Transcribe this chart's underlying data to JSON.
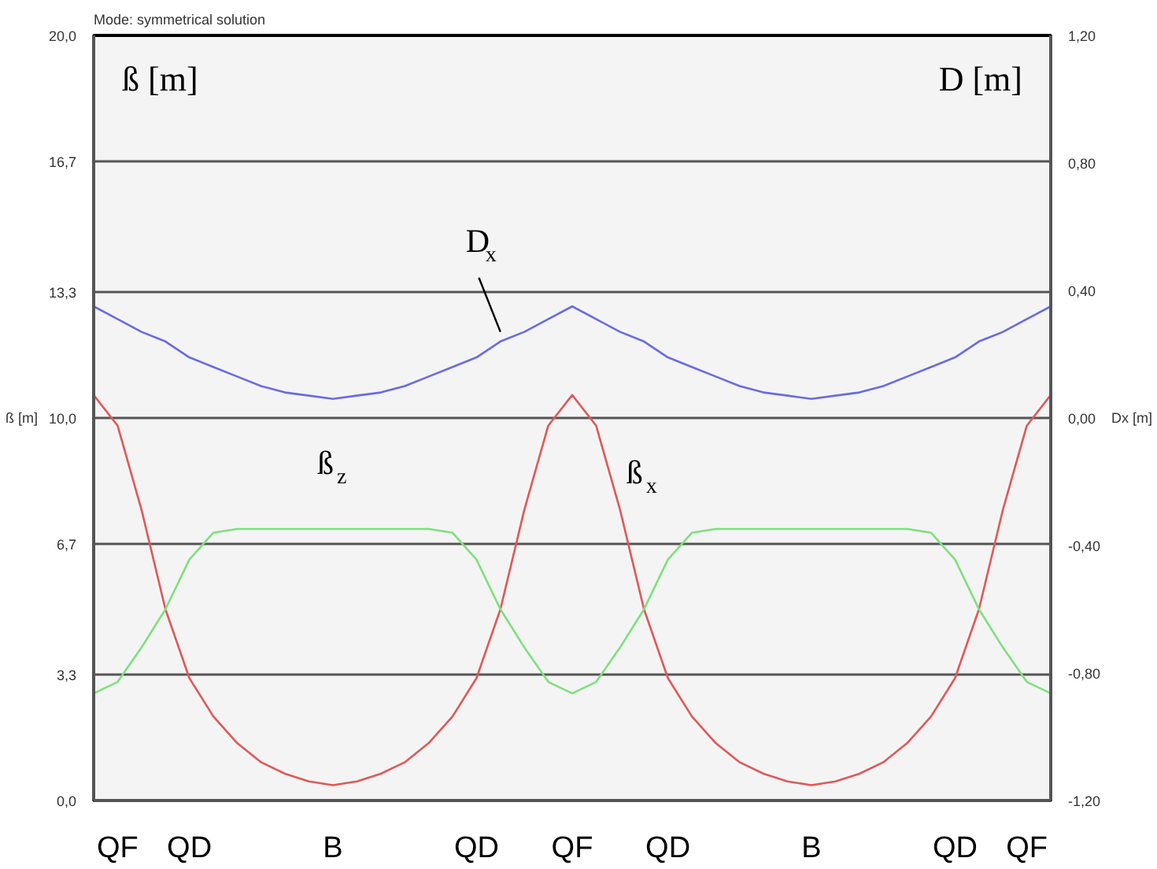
{
  "chart_data": {
    "type": "line",
    "title": "Mode: symmetrical solution",
    "ylabel": "ß [m]",
    "y2label": "Dx [m]",
    "annotations": [
      "ß [m]",
      "D [m]"
    ],
    "categories": [
      null,
      "QF",
      null,
      null,
      "QD",
      null,
      null,
      null,
      null,
      null,
      "B",
      null,
      null,
      null,
      null,
      null,
      "QD",
      null,
      null,
      null,
      "QF",
      null,
      null,
      null,
      "QD",
      null,
      null,
      null,
      null,
      null,
      "B",
      null,
      null,
      null,
      null,
      null,
      "QD",
      null,
      null,
      "QF",
      null
    ],
    "grid": "y",
    "ylim": [
      0,
      20
    ],
    "yticks": [
      {
        "value": 0,
        "label": "0,0"
      },
      {
        "value": 3.3,
        "label": "3,3"
      },
      {
        "value": 6.7,
        "label": "6,7"
      },
      {
        "value": 10,
        "label": "10,0"
      },
      {
        "value": 13.3,
        "label": "13,3"
      },
      {
        "value": 16.7,
        "label": "16,7"
      },
      {
        "value": 20,
        "label": "20,0"
      }
    ],
    "y2lim": [
      -1.2,
      1.2
    ],
    "y2ticks": [
      {
        "value": -1.2,
        "label": "-1,20"
      },
      {
        "value": -0.8,
        "label": "-0,80"
      },
      {
        "value": -0.4,
        "label": "-0,40"
      },
      {
        "value": 0,
        "label": "0,00"
      },
      {
        "value": 0.4,
        "label": "0,40"
      },
      {
        "value": 0.8,
        "label": "0,80"
      },
      {
        "value": 1.2,
        "label": "1,20"
      }
    ],
    "series": [
      {
        "name": "D$_{x}$",
        "color": "#6a6ae6",
        "axis": "y2",
        "values": [
          0.35,
          0.31,
          0.27,
          0.24,
          0.19,
          0.16,
          0.13,
          0.1,
          0.08,
          0.07,
          0.06,
          0.07,
          0.08,
          0.1,
          0.13,
          0.16,
          0.19,
          0.24,
          0.27,
          0.31,
          0.35,
          0.31,
          0.27,
          0.24,
          0.19,
          0.16,
          0.13,
          0.1,
          0.08,
          0.07,
          0.06,
          0.07,
          0.08,
          0.1,
          0.13,
          0.16,
          0.19,
          0.24,
          0.27,
          0.31,
          0.35
        ]
      },
      {
        "name": "ß$_{x}$",
        "color": "#e05858",
        "values": [
          10.6,
          9.8,
          7.6,
          5.0,
          3.2,
          2.2,
          1.5,
          1.0,
          0.7,
          0.5,
          0.4,
          0.5,
          0.7,
          1.0,
          1.5,
          2.2,
          3.2,
          5.0,
          7.6,
          9.8,
          10.6,
          9.8,
          7.6,
          5.0,
          3.2,
          2.2,
          1.5,
          1.0,
          0.7,
          0.5,
          0.4,
          0.5,
          0.7,
          1.0,
          1.5,
          2.2,
          3.2,
          5.0,
          7.6,
          9.8,
          10.6
        ]
      },
      {
        "name": "ß$_{z}$",
        "color": "#7ee07e",
        "values": [
          2.8,
          3.1,
          4.0,
          5.0,
          6.3,
          7.0,
          7.1,
          7.1,
          7.1,
          7.1,
          7.1,
          7.1,
          7.1,
          7.1,
          7.1,
          7.0,
          6.3,
          5.0,
          4.0,
          3.1,
          2.8,
          3.1,
          4.0,
          5.0,
          6.3,
          7.0,
          7.1,
          7.1,
          7.1,
          7.1,
          7.1,
          7.1,
          7.1,
          7.1,
          7.1,
          7.0,
          6.3,
          5.0,
          4.0,
          3.1,
          2.8
        ]
      }
    ]
  }
}
